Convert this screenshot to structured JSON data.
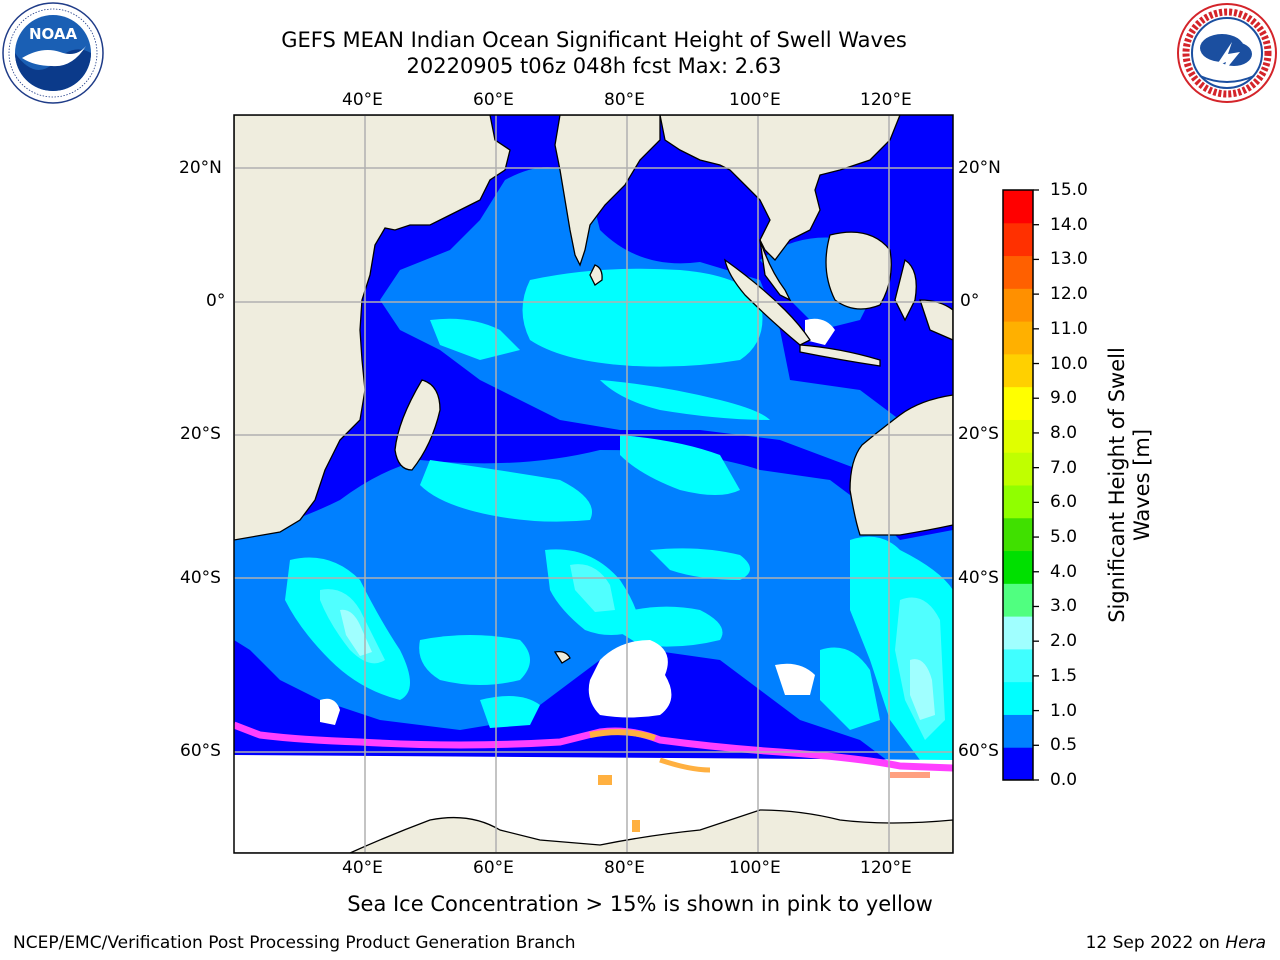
{
  "header": {
    "title_line1": "GEFS MEAN Indian Ocean Significant Height of Swell Waves",
    "title_line2": "20220905 t06z 048h fcst   Max: 2.63"
  },
  "logos": {
    "left": {
      "icon": "noaa-logo-icon",
      "text": "NOAA",
      "ring_text": "NATIONAL OCEANIC AND ATMOSPHERIC ADMINISTRATION · U.S. DEPARTMENT OF COMMERCE"
    },
    "right": {
      "icon": "nws-logo-icon",
      "ring_text": "NATIONAL WEATHER SERVICE"
    }
  },
  "map": {
    "lon_labels": [
      "40°E",
      "60°E",
      "80°E",
      "100°E",
      "120°E"
    ],
    "lat_labels": [
      "20°N",
      "0°",
      "20°S",
      "40°S",
      "60°S"
    ],
    "lon_range": [
      20,
      130
    ],
    "lat_range": [
      -72,
      28
    ],
    "land_color": "#efedde",
    "coast_color": "#000000",
    "ocean_base_color": "#0000ff"
  },
  "colorbar": {
    "label": "Significant Height of Swell Waves [m]",
    "label_line1": "Significant Height of Swell",
    "label_line2": "Waves [m]",
    "ticks": [
      "0.0",
      "0.5",
      "1.0",
      "1.5",
      "2.0",
      "3.0",
      "4.0",
      "5.0",
      "6.0",
      "7.0",
      "8.0",
      "9.0",
      "10.0",
      "11.0",
      "12.0",
      "13.0",
      "14.0",
      "15.0"
    ],
    "colors": [
      "#0000ff",
      "#0080ff",
      "#00ffff",
      "#40ffff",
      "#a0ffff",
      "#50ff80",
      "#00e000",
      "#40e000",
      "#90ff00",
      "#c0ff00",
      "#e0ff00",
      "#ffff00",
      "#ffd000",
      "#ffb000",
      "#ff9000",
      "#ff6000",
      "#ff3000",
      "#ff0000"
    ],
    "levels_m": [
      0.0,
      0.5,
      1.0,
      1.5,
      2.0,
      3.0,
      4.0,
      5.0,
      6.0,
      7.0,
      8.0,
      9.0,
      10.0,
      11.0,
      12.0,
      13.0,
      14.0,
      15.0
    ]
  },
  "caption": "Sea Ice Concentration > 15% is shown in pink to yellow",
  "footer": {
    "left": "NCEP/EMC/Verification Post Processing Product Generation Branch",
    "right_date": "12 Sep 2022 on ",
    "right_host": "Hera"
  }
}
